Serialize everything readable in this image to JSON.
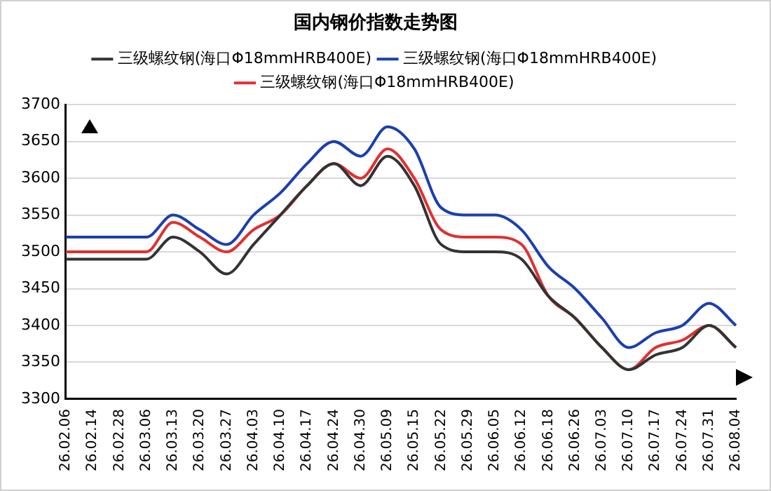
{
  "chart_data": {
    "type": "line",
    "title": "国内钢价指数走势图",
    "categories": [
      "26.02.06",
      "26.02.14",
      "26.02.28",
      "26.03.06",
      "26.03.13",
      "26.03.20",
      "26.03.27",
      "26.04.03",
      "26.04.10",
      "26.04.17",
      "26.04.24",
      "26.04.30",
      "26.05.09",
      "26.05.15",
      "26.05.22",
      "26.05.29",
      "26.06.05",
      "26.06.12",
      "26.06.18",
      "26.06.26",
      "26.07.03",
      "26.07.10",
      "26.07.17",
      "26.07.24",
      "26.07.31",
      "26.08.04"
    ],
    "series": [
      {
        "name": "三级螺纹钢(海口Φ18mmHRB400E)",
        "color": "#333333",
        "values": [
          3490,
          3490,
          3490,
          3490,
          3520,
          3500,
          3470,
          3510,
          3550,
          3590,
          3620,
          3590,
          3630,
          3590,
          3510,
          3500,
          3500,
          3490,
          3440,
          3410,
          3370,
          3340,
          3360,
          3370,
          3400,
          3370
        ]
      },
      {
        "name": "三级螺纹钢(海口Φ18mmHRB400E)",
        "color": "#1a3fb0",
        "values": [
          3520,
          3520,
          3520,
          3520,
          3550,
          3530,
          3510,
          3550,
          3580,
          3620,
          3650,
          3630,
          3670,
          3640,
          3560,
          3550,
          3550,
          3530,
          3480,
          3450,
          3410,
          3370,
          3390,
          3400,
          3430,
          3400
        ]
      },
      {
        "name": "三级螺纹钢(海口Φ18mmHRB400E)",
        "color": "#e03030",
        "values": [
          3500,
          3500,
          3500,
          3500,
          3540,
          3520,
          3500,
          3530,
          3550,
          3590,
          3620,
          3600,
          3640,
          3600,
          3530,
          3520,
          3520,
          3510,
          3440,
          3410,
          3370,
          3340,
          3370,
          3380,
          3400,
          3370
        ]
      }
    ],
    "ylim": [
      3300,
      3700
    ],
    "yticks": [
      3300,
      3350,
      3400,
      3450,
      3500,
      3550,
      3600,
      3650,
      3700
    ],
    "grid": "y",
    "legend": "top",
    "marker": "none",
    "line_style": "solid"
  }
}
